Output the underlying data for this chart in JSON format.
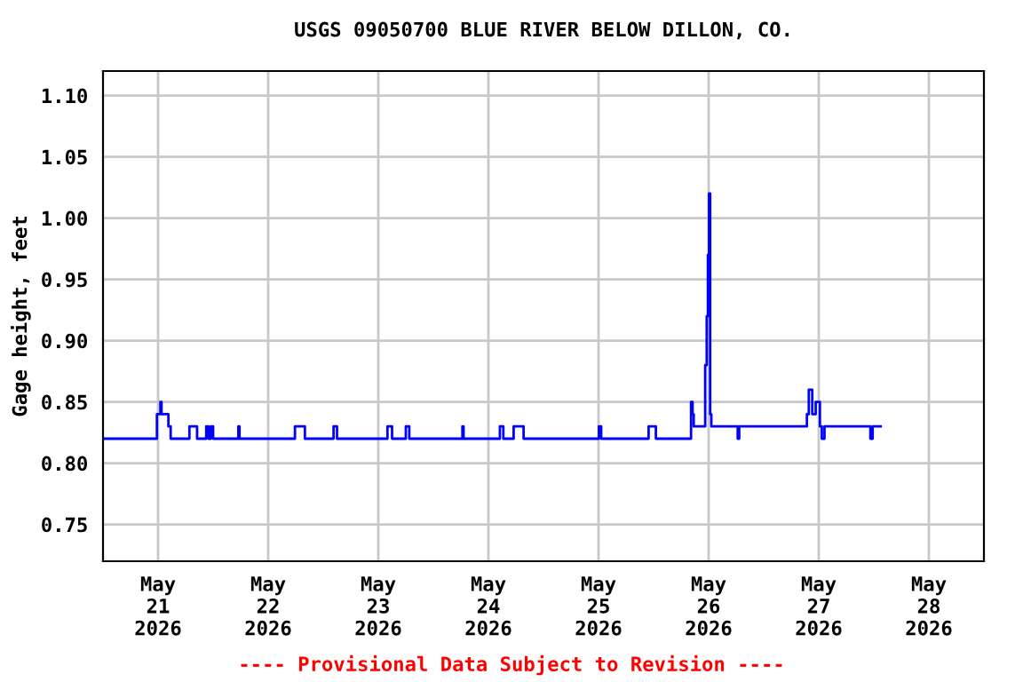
{
  "chart_data": {
    "type": "step",
    "title": "USGS 09050700 BLUE RIVER BELOW DILLON, CO.",
    "ylabel": "Gage height, feet",
    "annotations": [
      "---- Provisional Data Subject to Revision ----"
    ],
    "series": [
      {
        "color": "#0000ff",
        "x": [
          "2026-05-20T12:00",
          "2026-05-20T23:45",
          "2026-05-21T00:30",
          "2026-05-21T00:45",
          "2026-05-21T02:15",
          "2026-05-21T02:45",
          "2026-05-21T06:50",
          "2026-05-21T08:30",
          "2026-05-21T10:30",
          "2026-05-21T11:00",
          "2026-05-21T11:30",
          "2026-05-21T12:00",
          "2026-05-21T12:40",
          "2026-05-21T17:30",
          "2026-05-21T17:45",
          "2026-05-22T05:50",
          "2026-05-22T08:00",
          "2026-05-22T14:15",
          "2026-05-22T15:00",
          "2026-05-23T02:00",
          "2026-05-23T03:00",
          "2026-05-23T06:00",
          "2026-05-23T06:45",
          "2026-05-23T09:10",
          "2026-05-23T18:20",
          "2026-05-23T18:35",
          "2026-05-24T02:30",
          "2026-05-24T03:15",
          "2026-05-24T05:30",
          "2026-05-24T07:40",
          "2026-05-25T00:05",
          "2026-05-25T00:35",
          "2026-05-25T10:55",
          "2026-05-25T12:30",
          "2026-05-25T20:10",
          "2026-05-25T20:30",
          "2026-05-25T20:45",
          "2026-05-25T23:15",
          "2026-05-25T23:35",
          "2026-05-25T23:50",
          "2026-05-26T00:05",
          "2026-05-26T00:20",
          "2026-05-26T00:35",
          "2026-05-26T00:50",
          "2026-05-26T06:20",
          "2026-05-26T06:40",
          "2026-05-26T21:25",
          "2026-05-26T21:50",
          "2026-05-26T22:35",
          "2026-05-26T23:20",
          "2026-05-27T00:15",
          "2026-05-27T00:40",
          "2026-05-27T01:15",
          "2026-05-27T02:50",
          "2026-05-27T11:15",
          "2026-05-27T11:45",
          "2026-05-27T13:30"
        ],
        "values": [
          0.82,
          0.84,
          0.85,
          0.84,
          0.83,
          0.82,
          0.83,
          0.82,
          0.83,
          0.82,
          0.83,
          0.82,
          0.82,
          0.83,
          0.82,
          0.83,
          0.82,
          0.83,
          0.82,
          0.83,
          0.82,
          0.83,
          0.82,
          0.82,
          0.83,
          0.82,
          0.83,
          0.82,
          0.83,
          0.82,
          0.83,
          0.82,
          0.83,
          0.82,
          0.85,
          0.84,
          0.83,
          0.88,
          0.92,
          0.97,
          1.02,
          0.84,
          0.83,
          0.83,
          0.82,
          0.83,
          0.84,
          0.86,
          0.84,
          0.85,
          0.83,
          0.82,
          0.83,
          0.83,
          0.82,
          0.83,
          0.83
        ]
      }
    ],
    "xlim": [
      "2026-05-20T12:00",
      "2026-05-28T12:00"
    ],
    "xticks": [
      {
        "value": "2026-05-21",
        "label": "May\n21\n2026"
      },
      {
        "value": "2026-05-22",
        "label": "May\n22\n2026"
      },
      {
        "value": "2026-05-23",
        "label": "May\n23\n2026"
      },
      {
        "value": "2026-05-24",
        "label": "May\n24\n2026"
      },
      {
        "value": "2026-05-25",
        "label": "May\n25\n2026"
      },
      {
        "value": "2026-05-26",
        "label": "May\n26\n2026"
      },
      {
        "value": "2026-05-27",
        "label": "May\n27\n2026"
      },
      {
        "value": "2026-05-28",
        "label": "May\n28\n2026"
      }
    ],
    "ylim": [
      0.72,
      1.12
    ],
    "yticks": [
      {
        "value": 0.75,
        "label": "0.75"
      },
      {
        "value": 0.8,
        "label": "0.80"
      },
      {
        "value": 0.85,
        "label": "0.85"
      },
      {
        "value": 0.9,
        "label": "0.90"
      },
      {
        "value": 0.95,
        "label": "0.95"
      },
      {
        "value": 1.0,
        "label": "1.00"
      },
      {
        "value": 1.05,
        "label": "1.05"
      },
      {
        "value": 1.1,
        "label": "1.10"
      }
    ],
    "grid": true
  }
}
